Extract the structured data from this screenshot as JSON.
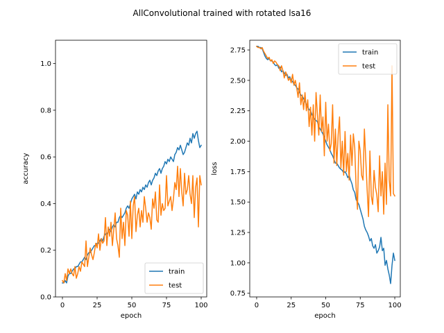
{
  "figure": {
    "title": "AllConvolutional trained with rotated lsa16"
  },
  "colors": {
    "train": "#1f77b4",
    "test": "#ff7f0e"
  },
  "chart_data": [
    {
      "type": "line",
      "xlabel": "epoch",
      "ylabel": "accuracy",
      "xlim": [
        -5,
        104
      ],
      "ylim": [
        0.0,
        1.1
      ],
      "xticks": [
        0,
        25,
        50,
        75,
        100
      ],
      "yticks": [
        0.0,
        0.2,
        0.4,
        0.6,
        0.8,
        1.0
      ],
      "ytick_labels": [
        "0.0",
        "0.2",
        "0.4",
        "0.6",
        "0.8",
        "1.0"
      ],
      "grid": false,
      "legend": "lower-right",
      "series": [
        {
          "name": "train",
          "color_key": "train",
          "values": [
            0.06,
            0.06,
            0.07,
            0.06,
            0.09,
            0.1,
            0.1,
            0.11,
            0.12,
            0.12,
            0.13,
            0.13,
            0.14,
            0.15,
            0.15,
            0.16,
            0.17,
            0.16,
            0.18,
            0.19,
            0.19,
            0.2,
            0.21,
            0.22,
            0.22,
            0.23,
            0.23,
            0.24,
            0.25,
            0.24,
            0.26,
            0.27,
            0.27,
            0.28,
            0.29,
            0.28,
            0.3,
            0.31,
            0.3,
            0.32,
            0.32,
            0.34,
            0.35,
            0.34,
            0.35,
            0.36,
            0.38,
            0.39,
            0.38,
            0.4,
            0.42,
            0.43,
            0.44,
            0.42,
            0.45,
            0.44,
            0.46,
            0.45,
            0.47,
            0.46,
            0.48,
            0.47,
            0.49,
            0.5,
            0.48,
            0.5,
            0.51,
            0.53,
            0.52,
            0.54,
            0.55,
            0.53,
            0.55,
            0.56,
            0.58,
            0.57,
            0.59,
            0.58,
            0.6,
            0.59,
            0.58,
            0.61,
            0.62,
            0.64,
            0.63,
            0.65,
            0.63,
            0.61,
            0.62,
            0.64,
            0.66,
            0.65,
            0.68,
            0.66,
            0.7,
            0.68,
            0.7,
            0.71,
            0.67,
            0.64,
            0.65
          ]
        },
        {
          "name": "test",
          "color_key": "test",
          "values": [
            0.07,
            0.06,
            0.1,
            0.07,
            0.12,
            0.1,
            0.12,
            0.1,
            0.09,
            0.13,
            0.08,
            0.1,
            0.13,
            0.11,
            0.15,
            0.14,
            0.13,
            0.24,
            0.13,
            0.17,
            0.21,
            0.18,
            0.16,
            0.19,
            0.23,
            0.21,
            0.27,
            0.2,
            0.25,
            0.23,
            0.24,
            0.34,
            0.22,
            0.3,
            0.26,
            0.32,
            0.22,
            0.29,
            0.36,
            0.25,
            0.22,
            0.17,
            0.38,
            0.25,
            0.32,
            0.22,
            0.37,
            0.35,
            0.26,
            0.41,
            0.25,
            0.39,
            0.43,
            0.28,
            0.35,
            0.38,
            0.3,
            0.37,
            0.32,
            0.43,
            0.38,
            0.32,
            0.36,
            0.34,
            0.29,
            0.42,
            0.38,
            0.45,
            0.33,
            0.32,
            0.48,
            0.35,
            0.4,
            0.37,
            0.38,
            0.52,
            0.39,
            0.41,
            0.43,
            0.37,
            0.42,
            0.49,
            0.46,
            0.56,
            0.43,
            0.55,
            0.45,
            0.39,
            0.53,
            0.44,
            0.46,
            0.52,
            0.44,
            0.4,
            0.52,
            0.34,
            0.47,
            0.51,
            0.3,
            0.52,
            0.48
          ]
        }
      ]
    },
    {
      "type": "line",
      "xlabel": "epoch",
      "ylabel": "loss",
      "xlim": [
        -5,
        104
      ],
      "ylim": [
        0.72,
        2.83
      ],
      "xticks": [
        0,
        25,
        50,
        75,
        100
      ],
      "yticks": [
        0.75,
        1.0,
        1.25,
        1.5,
        1.75,
        2.0,
        2.25,
        2.5,
        2.75
      ],
      "ytick_labels": [
        "0.75",
        "1.00",
        "1.25",
        "1.50",
        "1.75",
        "2.00",
        "2.25",
        "2.50",
        "2.75"
      ],
      "grid": false,
      "legend": "upper-right",
      "series": [
        {
          "name": "train",
          "color_key": "train",
          "values": [
            2.78,
            2.78,
            2.77,
            2.77,
            2.76,
            2.73,
            2.7,
            2.68,
            2.67,
            2.68,
            2.66,
            2.66,
            2.65,
            2.63,
            2.62,
            2.63,
            2.6,
            2.61,
            2.57,
            2.58,
            2.56,
            2.54,
            2.55,
            2.52,
            2.53,
            2.5,
            2.49,
            2.47,
            2.46,
            2.44,
            2.43,
            2.4,
            2.38,
            2.37,
            2.35,
            2.33,
            2.3,
            2.28,
            2.26,
            2.25,
            2.22,
            2.2,
            2.18,
            2.17,
            2.16,
            2.12,
            2.1,
            2.08,
            2.06,
            2.03,
            2.0,
            1.97,
            1.95,
            1.93,
            1.9,
            1.88,
            1.85,
            1.82,
            1.82,
            1.8,
            1.78,
            1.77,
            1.76,
            1.74,
            1.75,
            1.73,
            1.7,
            1.72,
            1.68,
            1.65,
            1.6,
            1.58,
            1.52,
            1.5,
            1.48,
            1.44,
            1.4,
            1.36,
            1.3,
            1.27,
            1.25,
            1.22,
            1.18,
            1.2,
            1.14,
            1.12,
            1.15,
            1.08,
            1.1,
            1.13,
            1.21,
            1.1,
            1.12,
            0.98,
            1.02,
            0.95,
            0.9,
            0.83,
            0.98,
            1.08,
            1.02
          ]
        },
        {
          "name": "test",
          "color_key": "test",
          "values": [
            2.78,
            2.77,
            2.77,
            2.76,
            2.77,
            2.74,
            2.72,
            2.7,
            2.68,
            2.69,
            2.66,
            2.67,
            2.64,
            2.66,
            2.65,
            2.63,
            2.62,
            2.58,
            2.62,
            2.58,
            2.52,
            2.57,
            2.54,
            2.5,
            2.52,
            2.48,
            2.55,
            2.46,
            2.5,
            2.44,
            2.36,
            2.48,
            2.3,
            2.38,
            2.26,
            2.4,
            2.25,
            2.34,
            2.12,
            2.28,
            2.05,
            2.3,
            2.0,
            2.4,
            2.22,
            2.05,
            2.38,
            2.08,
            2.2,
            1.88,
            2.32,
            2.0,
            2.14,
            1.92,
            1.98,
            2.3,
            1.82,
            2.1,
            1.8,
            2.05,
            2.2,
            1.78,
            2.0,
            1.72,
            2.08,
            1.75,
            1.9,
            1.68,
            2.05,
            1.8,
            2.06,
            1.95,
            1.62,
            1.44,
            2.0,
            1.92,
            1.72,
            1.68,
            2.1,
            1.85,
            1.6,
            1.38,
            1.92,
            1.55,
            1.48,
            1.76,
            1.62,
            1.56,
            1.42,
            1.88,
            1.55,
            1.75,
            1.4,
            1.82,
            1.48,
            2.3,
            1.68,
            1.55,
            2.62,
            1.57,
            1.55
          ]
        }
      ]
    }
  ]
}
